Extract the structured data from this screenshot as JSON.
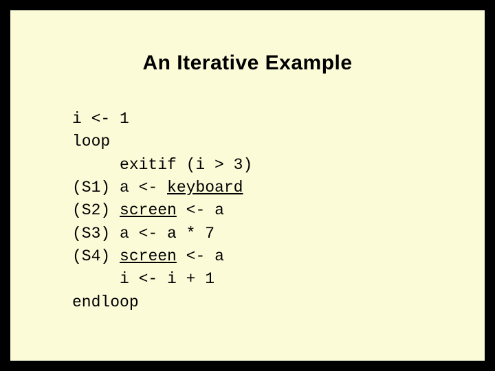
{
  "slide": {
    "title": "An Iterative Example",
    "title_fontsize": 30,
    "title_color": "#000000",
    "background_color": "#fbfbd8",
    "outer_background": "#000000",
    "border_color": "#000000",
    "code_font_family": "Courier New",
    "code_fontsize": 23,
    "code_line_height": 1.45,
    "code": {
      "lines": [
        {
          "label": "",
          "text_pre": "i <- 1",
          "underlined": "",
          "text_post": ""
        },
        {
          "label": "",
          "text_pre": "loop",
          "underlined": "",
          "text_post": ""
        },
        {
          "label": "",
          "text_pre": "     exitif (i > 3)",
          "underlined": "",
          "text_post": ""
        },
        {
          "label": "(S1)",
          "text_pre": " a <- ",
          "underlined": "keyboard",
          "text_post": ""
        },
        {
          "label": "(S2)",
          "text_pre": " ",
          "underlined": "screen",
          "text_post": " <- a"
        },
        {
          "label": "(S3)",
          "text_pre": " a <- a * 7",
          "underlined": "",
          "text_post": ""
        },
        {
          "label": "(S4)",
          "text_pre": " ",
          "underlined": "screen",
          "text_post": " <- a"
        },
        {
          "label": "",
          "text_pre": "     i <- i + 1",
          "underlined": "",
          "text_post": ""
        },
        {
          "label": "",
          "text_pre": "endloop",
          "underlined": "",
          "text_post": ""
        }
      ]
    }
  }
}
